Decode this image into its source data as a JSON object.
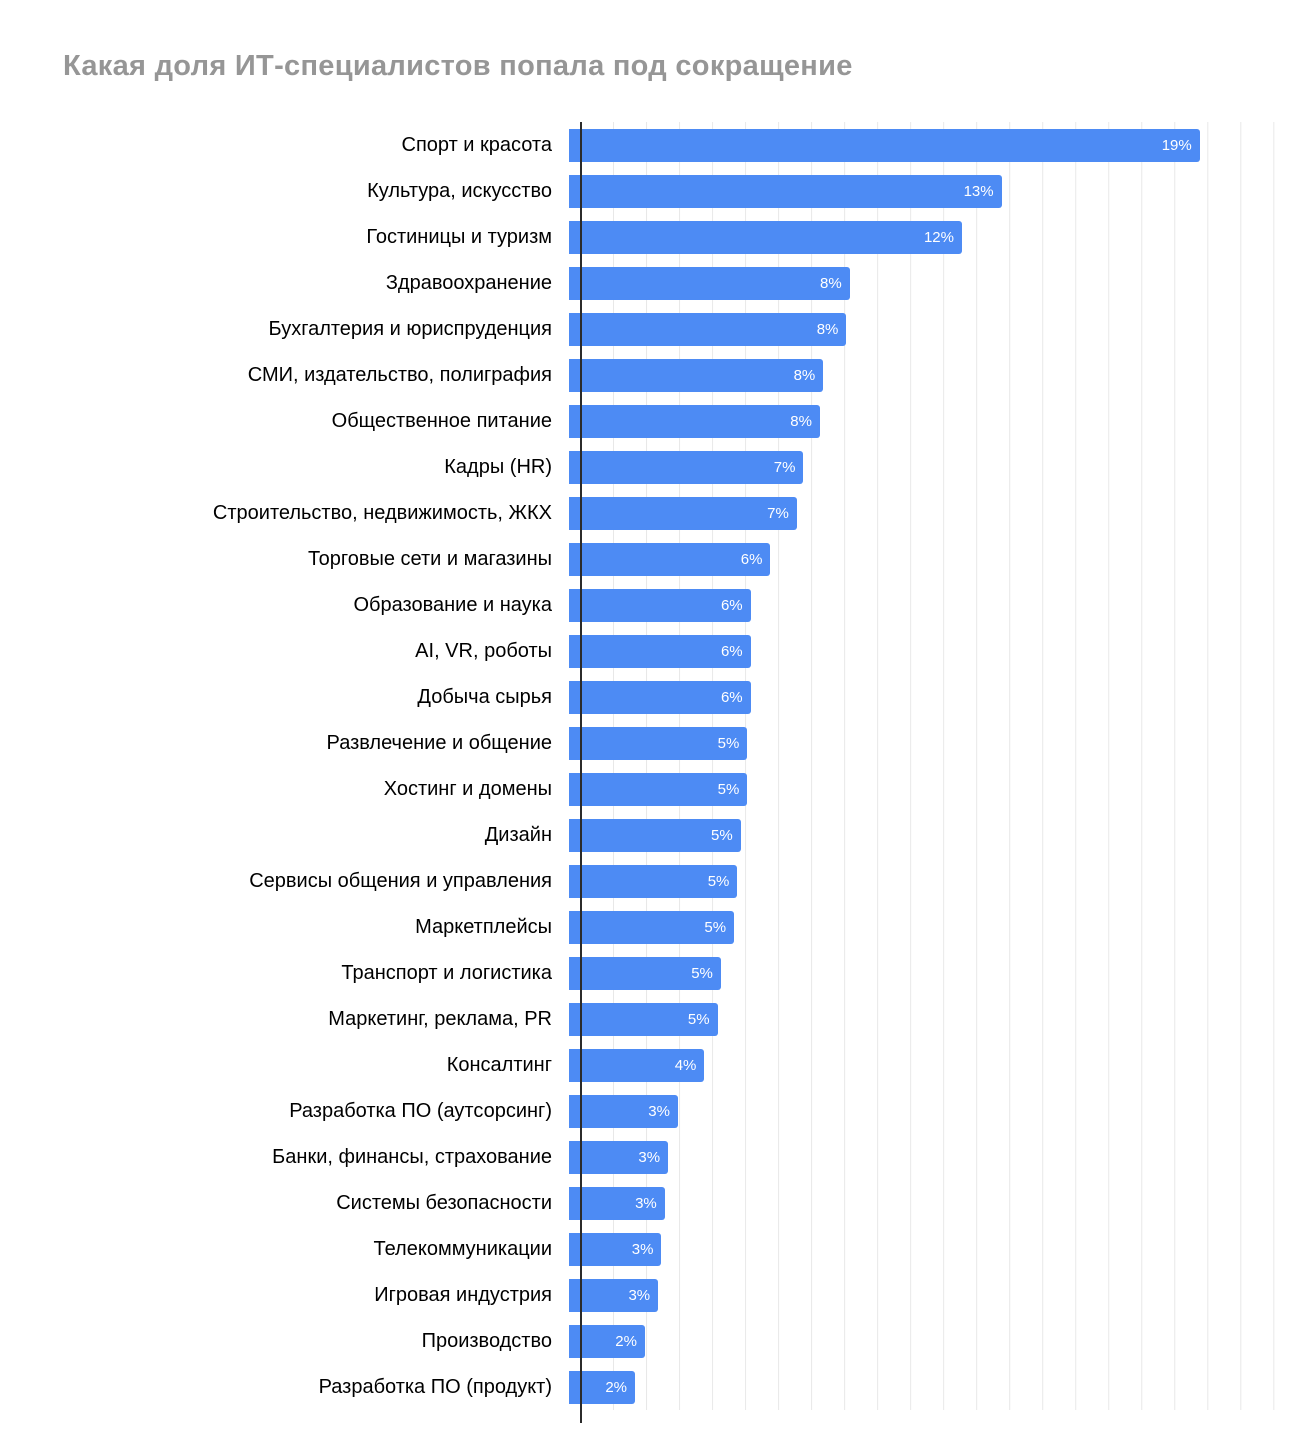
{
  "page": {
    "background": "#ffffff"
  },
  "chart_data": {
    "type": "bar",
    "orientation": "horizontal",
    "title": "Какая доля ИТ-специалистов попала под сокращение",
    "categories": [
      "Спорт и красота",
      "Культура, искусство",
      "Гостиницы и туризм",
      "Здравоохранение",
      "Бухгалтерия и юриспруденция",
      "СМИ, издательство, полиграфия",
      "Общественное питание",
      "Кадры (HR)",
      "Строительство, недвижимость, ЖКХ",
      "Торговые сети и магазины",
      "Образование и наука",
      "AI, VR, роботы",
      "Добыча сырья",
      "Развлечение и общение",
      "Хостинг и домены",
      "Дизайн",
      "Сервисы общения и управления",
      "Маркетплейсы",
      "Транспорт и логистика",
      "Маркетинг, реклама, PR",
      "Консалтинг",
      "Разработка ПО (аутсорсинг)",
      "Банки, финансы, страхование",
      "Системы безопасности",
      "Телекоммуникации",
      "Игровая индустрия",
      "Производство",
      "Разработка ПО (продукт)"
    ],
    "values": [
      19,
      13,
      12,
      8,
      8,
      8,
      8,
      7,
      7,
      6,
      6,
      6,
      6,
      5,
      5,
      5,
      5,
      5,
      5,
      5,
      4,
      3,
      3,
      3,
      3,
      3,
      2,
      2
    ],
    "values_exact": [
      19.1,
      13.1,
      11.9,
      8.5,
      8.4,
      7.7,
      7.6,
      7.1,
      6.9,
      6.1,
      5.5,
      5.5,
      5.5,
      5.4,
      5.4,
      5.2,
      5.1,
      5.0,
      4.6,
      4.5,
      4.1,
      3.3,
      3.0,
      2.9,
      2.8,
      2.7,
      2.3,
      2.0
    ],
    "value_suffix": "%",
    "xlim": [
      0,
      21.5
    ],
    "grid_step": 1,
    "grid": true,
    "legend": "none",
    "bar_color": "#4d8bf4",
    "value_label_color": "#ffffff",
    "category_label_color": "#000000",
    "title_color": "#969696",
    "gridline_color": "#e8e8e8",
    "axis_color": "#2b2b2b"
  }
}
